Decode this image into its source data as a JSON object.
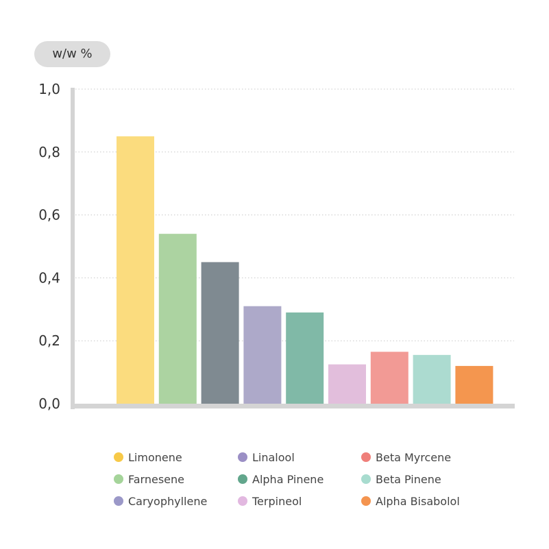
{
  "unit_label": "w/w %",
  "chart_data": {
    "type": "bar",
    "categories": [
      "Limonene",
      "Farnesene",
      "Linalool",
      "Caryophyllene",
      "Alpha Pinene",
      "Terpineol",
      "Beta Myrcene",
      "Beta Pinene",
      "Alpha Bisabolol"
    ],
    "values": [
      0.85,
      0.54,
      0.45,
      0.31,
      0.29,
      0.125,
      0.165,
      0.155,
      0.12
    ],
    "colors": [
      "#fbdc7e",
      "#acd3a1",
      "#7f8a91",
      "#ada9c9",
      "#80b9a7",
      "#e2bedc",
      "#f29a95",
      "#acdbd0",
      "#f4964f"
    ],
    "ylim": [
      0,
      1.0
    ],
    "y_ticks": [
      "0,0",
      "0,2",
      "0,4",
      "0,6",
      "0,8",
      "1,0"
    ],
    "y_tick_values": [
      0,
      0.2,
      0.4,
      0.6,
      0.8,
      1.0
    ],
    "grid": true,
    "legend_position": "bottom"
  },
  "legend": [
    {
      "label": "Limonene",
      "color": "#f7c948"
    },
    {
      "label": "Linalool",
      "color": "#9b8fc5"
    },
    {
      "label": "Beta Myrcene",
      "color": "#ef7f7a"
    },
    {
      "label": "Farnesene",
      "color": "#a5d49a"
    },
    {
      "label": "Alpha Pinene",
      "color": "#62a68c"
    },
    {
      "label": "Beta Pinene",
      "color": "#a8dccf"
    },
    {
      "label": "Caryophyllene",
      "color": "#9b98c8"
    },
    {
      "label": "Terpineol",
      "color": "#e2b8e0"
    },
    {
      "label": "Alpha Bisabolol",
      "color": "#f4944f"
    }
  ]
}
